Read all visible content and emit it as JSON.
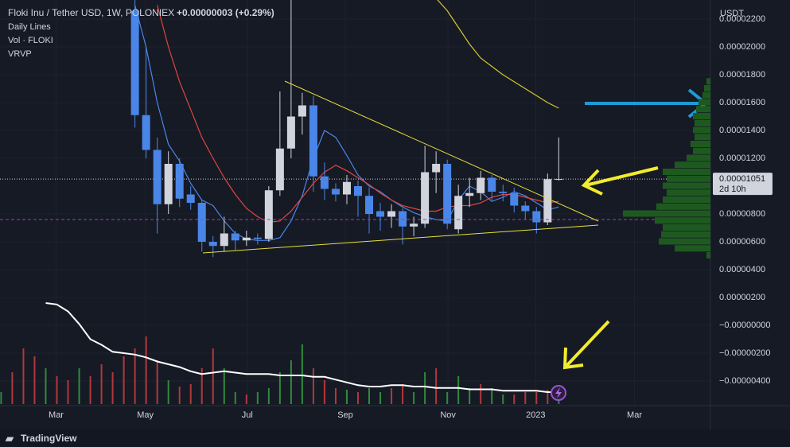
{
  "chart_data": {
    "type": "candlestick",
    "title": "Floki Inu / Tether USD, 1W, POLONIEX",
    "change": "+0.00000003 (+0.29%)",
    "indicators": [
      "Daily Lines",
      "Vol · FLOKI",
      "VRVP"
    ],
    "axis_unit": "USDT",
    "last_price": {
      "value": 1.051e-05,
      "label": "0.00001051"
    },
    "countdown": "2d 10h",
    "up_color": "#d1d4dc",
    "down_color": "#4a86e8",
    "open": [
      null,
      null,
      null,
      null,
      null,
      null,
      null,
      null,
      null,
      null,
      null,
      null,
      2.26e-05,
      1.51e-05,
      1.26e-05,
      8.7e-06,
      1.16e-05,
      9.4e-06,
      8.8e-06,
      6e-06,
      5.7e-06,
      6.6e-06,
      6.1e-06,
      6.3e-06,
      6.2e-06,
      9.7e-06,
      1.27e-05,
      1.5e-05,
      1.58e-05,
      1.07e-05,
      9.8e-06,
      9.4e-06,
      1e-05,
      9.3e-06,
      8.2e-06,
      7.8e-06,
      8.2e-06,
      7.1e-06,
      7.3e-06,
      1.1e-05,
      1.16e-05,
      6.9e-06,
      9.3e-06,
      9.5e-06,
      1.06e-05,
      9.6e-06,
      9.5e-06,
      8.6e-06,
      8.2e-06,
      7.4e-06,
      1.05e-05
    ],
    "high": [
      null,
      null,
      null,
      null,
      null,
      null,
      null,
      null,
      null,
      null,
      null,
      null,
      2.34e-05,
      2e-05,
      1.35e-05,
      1.25e-05,
      1.2e-05,
      1e-05,
      9e-06,
      6.4e-06,
      7.8e-06,
      6.8e-06,
      6.8e-06,
      6.6e-06,
      1e-05,
      1.68e-05,
      2.34e-05,
      1.67e-05,
      1.65e-05,
      1.17e-05,
      1.02e-05,
      1.08e-05,
      1.04e-05,
      9.9e-06,
      8.8e-06,
      8.7e-06,
      8.4e-06,
      7.8e-06,
      1.29e-05,
      1.25e-05,
      1.19e-05,
      1.01e-05,
      1.06e-05,
      1.11e-05,
      1.08e-05,
      1.01e-05,
      9.9e-06,
      8.9e-06,
      8.5e-06,
      1.09e-05,
      1.35e-05
    ],
    "low": [
      null,
      null,
      null,
      null,
      null,
      null,
      null,
      null,
      null,
      null,
      null,
      null,
      1.42e-05,
      1.2e-05,
      6.6e-06,
      8e-06,
      8.5e-06,
      8.3e-06,
      5.3e-06,
      4.9e-06,
      5.3e-06,
      5.4e-06,
      5.7e-06,
      5.8e-06,
      6e-06,
      9.3e-06,
      1.2e-05,
      1.37e-05,
      9.6e-06,
      9e-06,
      8.9e-06,
      8.7e-06,
      7.8e-06,
      6.6e-06,
      6.8e-06,
      7e-06,
      5.8e-06,
      6.4e-06,
      7e-06,
      9.5e-06,
      6.9e-06,
      6.6e-06,
      8.5e-06,
      9e-06,
      9e-06,
      8.9e-06,
      8.1e-06,
      7.6e-06,
      6.6e-06,
      7.2e-06,
      1.04e-05
    ],
    "close": [
      null,
      null,
      null,
      null,
      null,
      null,
      null,
      null,
      null,
      null,
      null,
      null,
      1.51e-05,
      1.26e-05,
      8.7e-06,
      1.16e-05,
      9.1e-06,
      8.8e-06,
      6e-06,
      5.7e-06,
      6.6e-06,
      6.1e-06,
      6.3e-06,
      6.2e-06,
      9.7e-06,
      1.27e-05,
      1.5e-05,
      1.58e-05,
      1.07e-05,
      9.8e-06,
      9.4e-06,
      1.03e-05,
      9.3e-06,
      8e-06,
      7.8e-06,
      8.2e-06,
      7.1e-06,
      7.3e-06,
      1.1e-05,
      1.16e-05,
      7.3e-06,
      9.3e-06,
      9.5e-06,
      1.06e-05,
      9.6e-06,
      9.5e-06,
      8.6e-06,
      8.2e-06,
      7.4e-06,
      1.05e-05,
      1.051e-05
    ],
    "lines": [
      {
        "color": "#4a86e8",
        "values": [
          null,
          null,
          null,
          null,
          null,
          null,
          null,
          null,
          null,
          null,
          null,
          null,
          2.3e-05,
          2e-05,
          1.6e-05,
          1.3e-05,
          1.18e-05,
          1.02e-05,
          9e-06,
          8.6e-06,
          7.5e-06,
          6.6e-06,
          6.2e-06,
          6.1e-06,
          6.1e-06,
          6.3e-06,
          7.5e-06,
          9.3e-06,
          1.2e-05,
          1.4e-05,
          1.35e-05,
          1.22e-05,
          1.08e-05,
          1e-05,
          9.6e-06,
          9e-06,
          8.5e-06,
          8.1e-06,
          7.8e-06,
          7.6e-06,
          7.5e-06,
          9e-06,
          1e-05,
          9.6e-06,
          8.9e-06,
          9.2e-06,
          9.6e-06,
          9.3e-06,
          8.8e-06,
          8.3e-06,
          8.5e-06
        ]
      },
      {
        "color": "#e0463f",
        "values": [
          null,
          null,
          null,
          null,
          null,
          null,
          null,
          null,
          null,
          null,
          null,
          null,
          null,
          null,
          2.3e-05,
          2e-05,
          1.75e-05,
          1.55e-05,
          1.35e-05,
          1.2e-05,
          1.06e-05,
          9.4e-06,
          8.4e-06,
          7.8e-06,
          7.4e-06,
          7.5e-06,
          8.2e-06,
          9.2e-06,
          1.02e-05,
          1.1e-05,
          1.15e-05,
          1.11e-05,
          1.06e-05,
          1.01e-05,
          9.5e-06,
          9e-06,
          8.6e-06,
          8.4e-06,
          8.2e-06,
          8.2e-06,
          8.5e-06,
          8.6e-06,
          8.6e-06,
          8.8e-06,
          9.2e-06,
          9.4e-06,
          9.4e-06,
          9.2e-06,
          9e-06,
          8.8e-06,
          8.9e-06
        ]
      },
      {
        "color": "#d4c82a",
        "values": [
          null,
          null,
          null,
          null,
          null,
          null,
          null,
          null,
          null,
          null,
          null,
          null,
          null,
          null,
          null,
          null,
          null,
          null,
          null,
          null,
          null,
          null,
          null,
          null,
          null,
          null,
          null,
          null,
          null,
          null,
          null,
          null,
          null,
          null,
          null,
          null,
          null,
          null,
          null,
          2.35e-05,
          2.26e-05,
          2.14e-05,
          2.02e-05,
          1.92e-05,
          1.86e-05,
          1.8e-05,
          1.75e-05,
          1.7e-05,
          1.65e-05,
          1.6e-05,
          1.56e-05
        ]
      },
      {
        "color": "#ffffff",
        "values": [
          null,
          null,
          null,
          null,
          1.6e-06,
          1.5e-06,
          1e-06,
          1e-07,
          -1e-06,
          -1.4e-06,
          -1.9e-06,
          -2e-06,
          -2.1e-06,
          -2.3e-06,
          -2.6e-06,
          -2.8e-06,
          -3e-06,
          -3.3e-06,
          -3.5e-06,
          -3.4e-06,
          -3.3e-06,
          -3.4e-06,
          -3.5e-06,
          -3.5e-06,
          -3.5e-06,
          -3.6e-06,
          -3.6e-06,
          -3.6e-06,
          -3.7e-06,
          -3.7e-06,
          -3.9e-06,
          -4.1e-06,
          -4.3e-06,
          -4.4e-06,
          -4.4e-06,
          -4.3e-06,
          -4.3e-06,
          -4.4e-06,
          -4.4e-06,
          -4.5e-06,
          -4.5e-06,
          -4.5e-06,
          -4.6e-06,
          -4.6e-06,
          -4.6e-06,
          -4.7e-06,
          -4.7e-06,
          -4.7e-06,
          -4.7e-06,
          -4.8e-06,
          -4.8e-06
        ]
      }
    ],
    "volume": [
      15,
      40,
      70,
      60,
      45,
      35,
      30,
      45,
      35,
      50,
      40,
      60,
      70,
      85,
      55,
      30,
      22,
      25,
      45,
      70,
      45,
      15,
      12,
      15,
      20,
      40,
      55,
      75,
      45,
      30,
      20,
      18,
      15,
      20,
      15,
      20,
      25,
      15,
      40,
      45,
      15,
      35,
      20,
      25,
      20,
      12,
      12,
      15,
      15,
      18,
      10
    ],
    "volume_colors": [
      "#2f8a3e",
      "#b2383a",
      "#b2383a",
      "#b2383a",
      "#2f8a3e",
      "#b2383a",
      "#b2383a",
      "#2f8a3e",
      "#b2383a",
      "#b2383a",
      "#b2383a",
      "#b2383a",
      "#b2383a",
      "#b2383a",
      "#b2383a",
      "#2f8a3e",
      "#b2383a",
      "#b2383a",
      "#b2383a",
      "#b2383a",
      "#2f8a3e",
      "#2f8a3e",
      "#b2383a",
      "#2f8a3e",
      "#2f8a3e",
      "#2f8a3e",
      "#2f8a3e",
      "#2f8a3e",
      "#b2383a",
      "#b2383a",
      "#b2383a",
      "#2f8a3e",
      "#b2383a",
      "#2f8a3e",
      "#2f8a3e",
      "#b2383a",
      "#b2383a",
      "#2f8a3e",
      "#2f8a3e",
      "#b2383a",
      "#2f8a3e",
      "#2f8a3e",
      "#2f8a3e",
      "#b2383a",
      "#2f8a3e",
      "#2f8a3e",
      "#b2383a",
      "#b2383a",
      "#b2383a",
      "#b2383a",
      "#2f8a3e"
    ],
    "vrvp_prices": [
      5e-06,
      5.5e-06,
      6e-06,
      6.5e-06,
      7e-06,
      7.5e-06,
      8e-06,
      8.5e-06,
      9e-06,
      9.5e-06,
      1e-05,
      1.05e-05,
      1.1e-05,
      1.15e-05,
      1.2e-05,
      1.25e-05,
      1.3e-05,
      1.35e-05,
      1.4e-05,
      1.45e-05,
      1.5e-05,
      1.55e-05,
      1.6e-05,
      1.65e-05,
      1.7e-05,
      1.75e-05
    ],
    "vrvp_volumes": [
      5,
      45,
      65,
      62,
      60,
      70,
      110,
      68,
      60,
      55,
      60,
      55,
      60,
      45,
      30,
      22,
      25,
      20,
      22,
      20,
      22,
      18,
      15,
      10,
      8,
      5
    ],
    "vrvp_color": "#1e5a20",
    "xlim": [
      -0.1,
      63.6
    ],
    "xticks": [
      {
        "value": 4.93,
        "label": "Mar"
      },
      {
        "value": 12.93,
        "label": "May"
      },
      {
        "value": 22.07,
        "label": "Jul"
      },
      {
        "value": 30.86,
        "label": "Sep"
      },
      {
        "value": 40.07,
        "label": "Nov"
      },
      {
        "value": 47.93,
        "label": "2023"
      },
      {
        "value": 56.79,
        "label": "Mar"
      }
    ],
    "ylim": [
      -5.771e-06,
      2.3371e-05
    ],
    "yticks": [
      {
        "value": 2.2e-05,
        "label": "0.00002200"
      },
      {
        "value": 2e-05,
        "label": "0.00002000"
      },
      {
        "value": 1.8e-05,
        "label": "0.00001800"
      },
      {
        "value": 1.6e-05,
        "label": "0.00001600"
      },
      {
        "value": 1.4e-05,
        "label": "0.00001400"
      },
      {
        "value": 1.2e-05,
        "label": "0.00001200"
      },
      {
        "value": 8e-06,
        "label": "0.00000800"
      },
      {
        "value": 6e-06,
        "label": "0.00000600"
      },
      {
        "value": 4e-06,
        "label": "0.00000400"
      },
      {
        "value": 2e-06,
        "label": "0.00000200"
      },
      {
        "value": 0,
        "label": "−0.00000000"
      },
      {
        "value": -2e-06,
        "label": "−0.00000200"
      },
      {
        "value": -4e-06,
        "label": "−0.00000400"
      }
    ],
    "brand": "TradingView"
  }
}
